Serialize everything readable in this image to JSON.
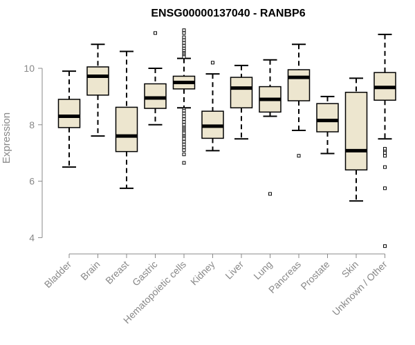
{
  "chart_data": {
    "type": "boxplot",
    "title": "ENSG00000137040 - RANBP6",
    "xlabel": "",
    "ylabel": "Expression",
    "ylim": [
      3.5,
      11.6
    ],
    "yticks": [
      4,
      6,
      8,
      10
    ],
    "box_fill": "#ede6cf",
    "categories": [
      "Bladder",
      "Brain",
      "Breast",
      "Gastric",
      "Hematopoietic cells",
      "Kidney",
      "Liver",
      "Lung",
      "Pancreas",
      "Prostate",
      "Skin",
      "Unknown / Other"
    ],
    "boxes": [
      {
        "whisker_low": 6.5,
        "q1": 7.9,
        "median": 8.3,
        "q3": 8.9,
        "whisker_high": 9.9,
        "outliers": []
      },
      {
        "whisker_low": 7.6,
        "q1": 9.05,
        "median": 9.72,
        "q3": 10.05,
        "whisker_high": 10.85,
        "outliers": []
      },
      {
        "whisker_low": 5.75,
        "q1": 7.05,
        "median": 7.6,
        "q3": 8.62,
        "whisker_high": 10.6,
        "outliers": []
      },
      {
        "whisker_low": 8.0,
        "q1": 8.58,
        "median": 8.95,
        "q3": 9.45,
        "whisker_high": 10.0,
        "outliers": [
          11.25
        ]
      },
      {
        "whisker_low": 8.6,
        "q1": 9.27,
        "median": 9.5,
        "q3": 9.72,
        "whisker_high": 10.35,
        "outliers": [
          11.35,
          11.25,
          11.1,
          11.0,
          10.9,
          10.8,
          10.7,
          10.62,
          10.55,
          10.5,
          10.45,
          10.4,
          8.55,
          8.5,
          8.4,
          8.3,
          8.2,
          8.1,
          8.0,
          7.9,
          7.85,
          7.8,
          7.75,
          7.7,
          7.6,
          7.55,
          7.5,
          7.4,
          7.3,
          7.2,
          7.1,
          6.95,
          6.65
        ]
      },
      {
        "whisker_low": 7.08,
        "q1": 7.52,
        "median": 7.95,
        "q3": 8.48,
        "whisker_high": 9.8,
        "outliers": [
          10.2
        ]
      },
      {
        "whisker_low": 7.5,
        "q1": 8.6,
        "median": 9.3,
        "q3": 9.68,
        "whisker_high": 10.1,
        "outliers": []
      },
      {
        "whisker_low": 8.3,
        "q1": 8.45,
        "median": 8.9,
        "q3": 9.35,
        "whisker_high": 10.3,
        "outliers": [
          5.55
        ]
      },
      {
        "whisker_low": 7.8,
        "q1": 8.85,
        "median": 9.68,
        "q3": 9.95,
        "whisker_high": 10.85,
        "outliers": [
          6.9
        ]
      },
      {
        "whisker_low": 6.98,
        "q1": 7.75,
        "median": 8.15,
        "q3": 8.75,
        "whisker_high": 9.0,
        "outliers": []
      },
      {
        "whisker_low": 5.3,
        "q1": 6.4,
        "median": 7.08,
        "q3": 9.15,
        "whisker_high": 9.65,
        "outliers": []
      },
      {
        "whisker_low": 7.5,
        "q1": 8.87,
        "median": 9.32,
        "q3": 9.85,
        "whisker_high": 11.2,
        "outliers": [
          7.15,
          7.05,
          7.0,
          6.9,
          6.5,
          5.75,
          3.7
        ]
      }
    ]
  }
}
